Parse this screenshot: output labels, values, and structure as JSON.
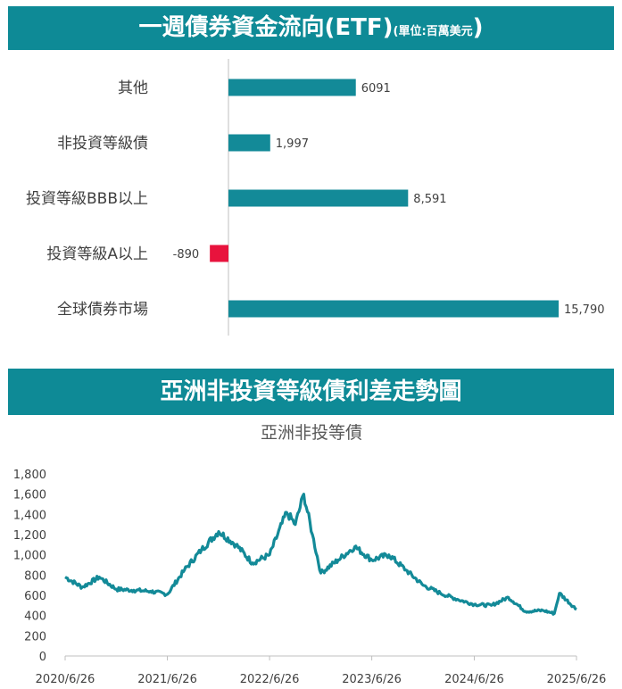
{
  "sections": {
    "flow_title_main": "一週債券資金流向(ETF)",
    "flow_title_unit": "(單位:百萬美元",
    "flow_title_close": ")",
    "spread_title": "亞洲非投資等級債利差走勢圖"
  },
  "colors": {
    "banner": "#0e8a96",
    "positive": "#138a98",
    "negative": "#e8133d",
    "line": "#138a98"
  },
  "chart_data": [
    {
      "type": "bar",
      "orientation": "horizontal",
      "categories": [
        "其他",
        "非投資等級債",
        "投資等級BBB以上",
        "投資等級A以上",
        "全球債券市場"
      ],
      "values": [
        6091,
        1997,
        8591,
        -890,
        15790
      ],
      "value_labels": [
        "6091",
        "1,997",
        "8,591",
        "-890",
        "15,790"
      ],
      "unit": "百萬美元"
    },
    {
      "type": "line",
      "title": "亞洲非投等債",
      "ylim": [
        0,
        1800
      ],
      "yticks": [
        "0",
        "200",
        "400",
        "600",
        "800",
        "1,000",
        "1,200",
        "1,400",
        "1,600",
        "1,800"
      ],
      "xticks": [
        "2020/6/26",
        "2021/6/26",
        "2022/6/26",
        "2023/6/26",
        "2024/6/26",
        "2025/6/26"
      ],
      "x": [
        "2020/6/26",
        "2020/8/26",
        "2020/10/26",
        "2020/12/26",
        "2021/2/26",
        "2021/4/26",
        "2021/6/26",
        "2021/8/26",
        "2021/10/26",
        "2021/12/26",
        "2022/2/26",
        "2022/4/26",
        "2022/6/26",
        "2022/8/26",
        "2022/9/26",
        "2022/10/26",
        "2022/11/26",
        "2022/12/26",
        "2023/2/26",
        "2023/4/26",
        "2023/6/26",
        "2023/8/26",
        "2023/10/26",
        "2023/12/26",
        "2024/2/26",
        "2024/4/26",
        "2024/6/26",
        "2024/8/26",
        "2024/10/26",
        "2024/12/26",
        "2025/2/26",
        "2025/4/8",
        "2025/4/26",
        "2025/6/26"
      ],
      "values": [
        780,
        680,
        780,
        660,
        650,
        640,
        610,
        850,
        1050,
        1230,
        1100,
        920,
        1000,
        1420,
        1300,
        1600,
        1200,
        820,
        950,
        1080,
        950,
        1000,
        850,
        700,
        620,
        560,
        510,
        500,
        580,
        440,
        450,
        420,
        620,
        460
      ]
    }
  ]
}
